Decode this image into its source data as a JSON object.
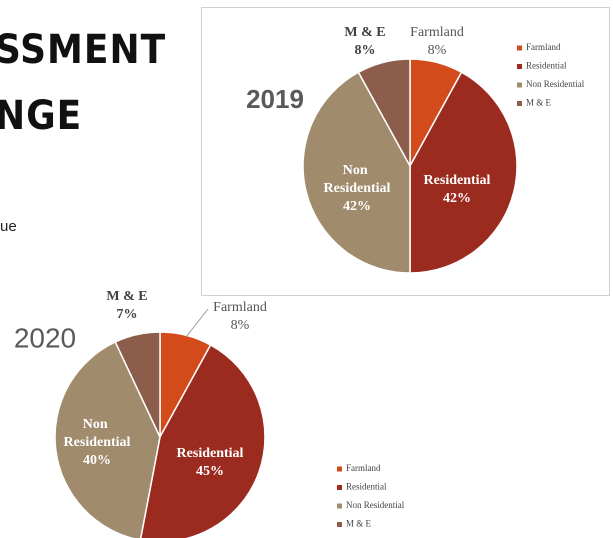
{
  "slide": {
    "title_lines": [
      "SSMENT",
      "NGE"
    ],
    "body": "ue"
  },
  "chart_data": [
    {
      "type": "pie",
      "title": "2019",
      "categories": [
        "Farmland",
        "Residential",
        "Non Residential",
        "M & E"
      ],
      "values": [
        8,
        42,
        42,
        8
      ],
      "value_labels": [
        "8%",
        "42%",
        "42%",
        "8%"
      ],
      "colors": [
        "#d34a1b",
        "#9b2b1f",
        "#a08b6c",
        "#8d5d4b"
      ],
      "legend": "right"
    },
    {
      "type": "pie",
      "title": "2020",
      "categories": [
        "Farmland",
        "Residential",
        "Non Residential",
        "M & E"
      ],
      "values": [
        8,
        45,
        40,
        7
      ],
      "value_labels": [
        "8%",
        "45%",
        "40%",
        "7%"
      ],
      "colors": [
        "#d34a1b",
        "#9b2b1f",
        "#a08b6c",
        "#8d5d4b"
      ],
      "legend": "lower right"
    }
  ]
}
